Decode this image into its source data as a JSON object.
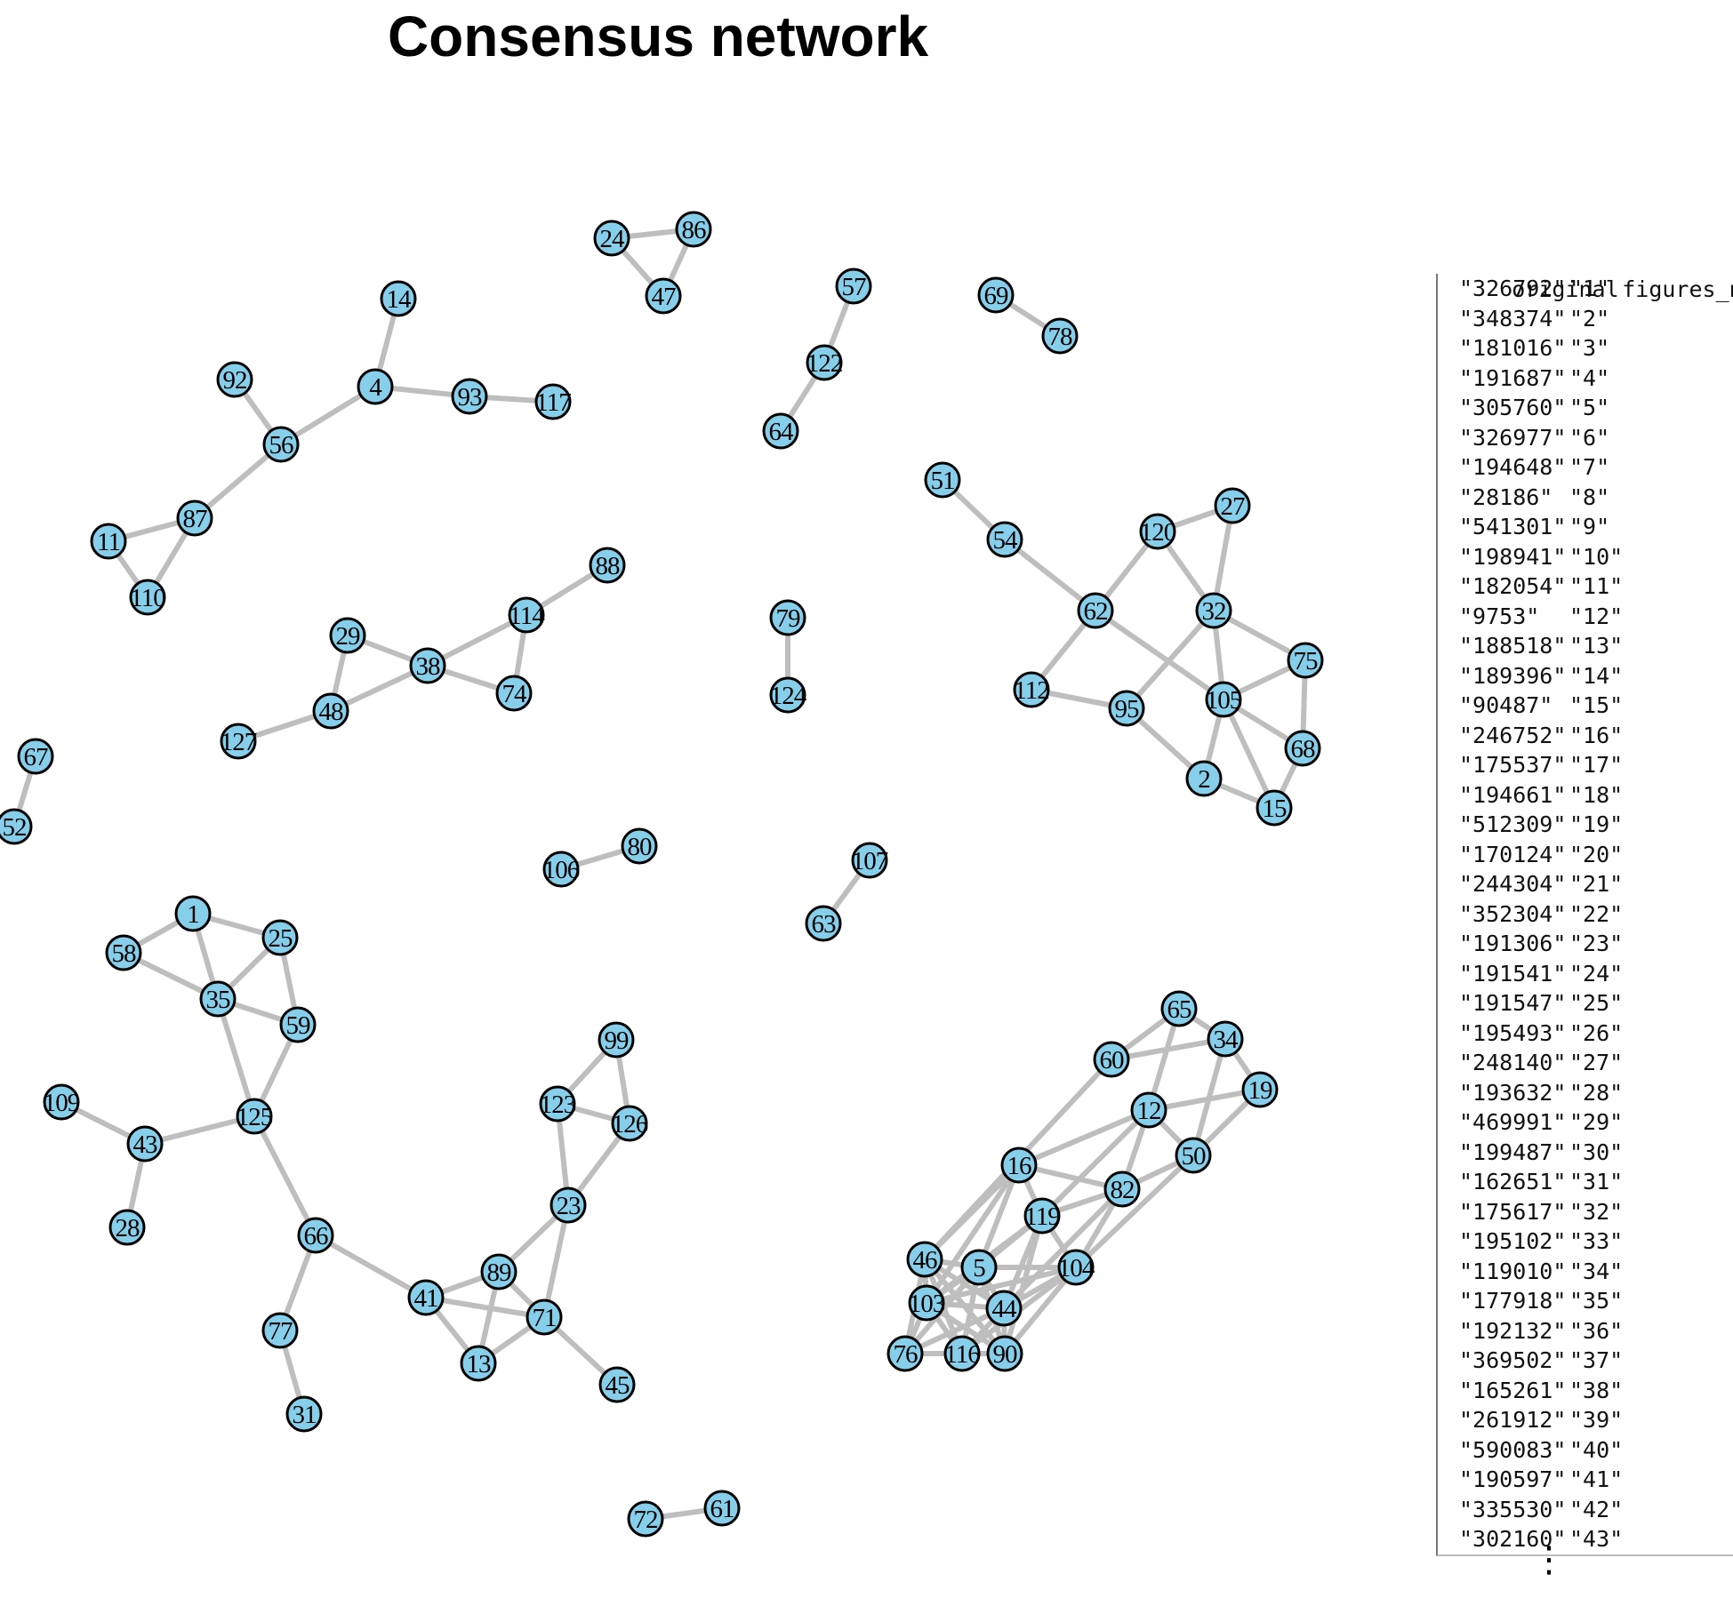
{
  "title": "Consensus network",
  "mapping_table": {
    "headers": [
      "original",
      "figures_name"
    ],
    "rows": [
      [
        "\"326792\"",
        "\"1\""
      ],
      [
        "\"348374\"",
        "\"2\""
      ],
      [
        "\"181016\"",
        "\"3\""
      ],
      [
        "\"191687\"",
        "\"4\""
      ],
      [
        "\"305760\"",
        "\"5\""
      ],
      [
        "\"326977\"",
        "\"6\""
      ],
      [
        "\"194648\"",
        "\"7\""
      ],
      [
        "\"28186\"",
        "\"8\""
      ],
      [
        "\"541301\"",
        "\"9\""
      ],
      [
        "\"198941\"",
        "\"10\""
      ],
      [
        "\"182054\"",
        "\"11\""
      ],
      [
        "\"9753\"",
        "\"12\""
      ],
      [
        "\"188518\"",
        "\"13\""
      ],
      [
        "\"189396\"",
        "\"14\""
      ],
      [
        "\"90487\"",
        "\"15\""
      ],
      [
        "\"246752\"",
        "\"16\""
      ],
      [
        "\"175537\"",
        "\"17\""
      ],
      [
        "\"194661\"",
        "\"18\""
      ],
      [
        "\"512309\"",
        "\"19\""
      ],
      [
        "\"170124\"",
        "\"20\""
      ],
      [
        "\"244304\"",
        "\"21\""
      ],
      [
        "\"352304\"",
        "\"22\""
      ],
      [
        "\"191306\"",
        "\"23\""
      ],
      [
        "\"191541\"",
        "\"24\""
      ],
      [
        "\"191547\"",
        "\"25\""
      ],
      [
        "\"195493\"",
        "\"26\""
      ],
      [
        "\"248140\"",
        "\"27\""
      ],
      [
        "\"193632\"",
        "\"28\""
      ],
      [
        "\"469991\"",
        "\"29\""
      ],
      [
        "\"199487\"",
        "\"30\""
      ],
      [
        "\"162651\"",
        "\"31\""
      ],
      [
        "\"175617\"",
        "\"32\""
      ],
      [
        "\"195102\"",
        "\"33\""
      ],
      [
        "\"119010\"",
        "\"34\""
      ],
      [
        "\"177918\"",
        "\"35\""
      ],
      [
        "\"192132\"",
        "\"36\""
      ],
      [
        "\"369502\"",
        "\"37\""
      ],
      [
        "\"165261\"",
        "\"38\""
      ],
      [
        "\"261912\"",
        "\"39\""
      ],
      [
        "\"590083\"",
        "\"40\""
      ],
      [
        "\"190597\"",
        "\"41\""
      ],
      [
        "\"335530\"",
        "\"42\""
      ],
      [
        "\"302160\"",
        "\"43\""
      ]
    ],
    "continuation": "⋮"
  },
  "network": {
    "node_fill": "#87ceeb",
    "node_stroke": "#000000",
    "edge_color": "#bebebe",
    "nodes": [
      "24",
      "86",
      "47",
      "57",
      "122",
      "64",
      "69",
      "78",
      "14",
      "92",
      "4",
      "93",
      "117",
      "56",
      "87",
      "11",
      "110",
      "88",
      "114",
      "29",
      "38",
      "74",
      "48",
      "127",
      "79",
      "124",
      "51",
      "54",
      "120",
      "27",
      "62",
      "32",
      "75",
      "112",
      "95",
      "105",
      "68",
      "2",
      "15",
      "67",
      "52",
      "106",
      "80",
      "107",
      "63",
      "1",
      "58",
      "25",
      "35",
      "59",
      "109",
      "43",
      "125",
      "28",
      "99",
      "123",
      "126",
      "23",
      "66",
      "89",
      "41",
      "71",
      "77",
      "13",
      "45",
      "31",
      "72",
      "61",
      "65",
      "60",
      "34",
      "19",
      "12",
      "50",
      "16",
      "82",
      "119",
      "46",
      "5",
      "104",
      "103",
      "44",
      "76",
      "116",
      "90"
    ],
    "edges": [
      [
        "24",
        "86"
      ],
      [
        "24",
        "47"
      ],
      [
        "86",
        "47"
      ],
      [
        "57",
        "122"
      ],
      [
        "122",
        "64"
      ],
      [
        "69",
        "78"
      ],
      [
        "14",
        "4"
      ],
      [
        "4",
        "93"
      ],
      [
        "93",
        "117"
      ],
      [
        "4",
        "56"
      ],
      [
        "92",
        "56"
      ],
      [
        "56",
        "87"
      ],
      [
        "87",
        "11"
      ],
      [
        "87",
        "110"
      ],
      [
        "11",
        "110"
      ],
      [
        "88",
        "114"
      ],
      [
        "114",
        "38"
      ],
      [
        "114",
        "74"
      ],
      [
        "38",
        "74"
      ],
      [
        "29",
        "38"
      ],
      [
        "29",
        "48"
      ],
      [
        "38",
        "48"
      ],
      [
        "48",
        "127"
      ],
      [
        "79",
        "124"
      ],
      [
        "51",
        "54"
      ],
      [
        "54",
        "62"
      ],
      [
        "62",
        "120"
      ],
      [
        "120",
        "27"
      ],
      [
        "120",
        "32"
      ],
      [
        "27",
        "32"
      ],
      [
        "62",
        "105"
      ],
      [
        "62",
        "112"
      ],
      [
        "112",
        "95"
      ],
      [
        "95",
        "32"
      ],
      [
        "95",
        "2"
      ],
      [
        "32",
        "75"
      ],
      [
        "32",
        "105"
      ],
      [
        "75",
        "105"
      ],
      [
        "75",
        "68"
      ],
      [
        "105",
        "68"
      ],
      [
        "105",
        "2"
      ],
      [
        "105",
        "15"
      ],
      [
        "2",
        "15"
      ],
      [
        "68",
        "15"
      ],
      [
        "67",
        "52"
      ],
      [
        "106",
        "80"
      ],
      [
        "107",
        "63"
      ],
      [
        "1",
        "58"
      ],
      [
        "1",
        "25"
      ],
      [
        "1",
        "35"
      ],
      [
        "58",
        "35"
      ],
      [
        "25",
        "35"
      ],
      [
        "25",
        "59"
      ],
      [
        "35",
        "59"
      ],
      [
        "35",
        "125"
      ],
      [
        "59",
        "125"
      ],
      [
        "125",
        "43"
      ],
      [
        "109",
        "43"
      ],
      [
        "43",
        "28"
      ],
      [
        "125",
        "66"
      ],
      [
        "99",
        "123"
      ],
      [
        "99",
        "126"
      ],
      [
        "123",
        "126"
      ],
      [
        "123",
        "23"
      ],
      [
        "126",
        "23"
      ],
      [
        "23",
        "89"
      ],
      [
        "23",
        "71"
      ],
      [
        "66",
        "41"
      ],
      [
        "66",
        "77"
      ],
      [
        "77",
        "31"
      ],
      [
        "41",
        "89"
      ],
      [
        "41",
        "71"
      ],
      [
        "41",
        "13"
      ],
      [
        "89",
        "13"
      ],
      [
        "89",
        "71"
      ],
      [
        "13",
        "71"
      ],
      [
        "71",
        "45"
      ],
      [
        "72",
        "61"
      ],
      [
        "65",
        "60"
      ],
      [
        "65",
        "34"
      ],
      [
        "65",
        "12"
      ],
      [
        "60",
        "34"
      ],
      [
        "34",
        "19"
      ],
      [
        "34",
        "50"
      ],
      [
        "12",
        "19"
      ],
      [
        "12",
        "50"
      ],
      [
        "19",
        "50"
      ],
      [
        "60",
        "46"
      ],
      [
        "12",
        "16"
      ],
      [
        "12",
        "82"
      ],
      [
        "12",
        "119"
      ],
      [
        "50",
        "82"
      ],
      [
        "50",
        "104"
      ],
      [
        "16",
        "82"
      ],
      [
        "16",
        "119"
      ],
      [
        "16",
        "46"
      ],
      [
        "16",
        "5"
      ],
      [
        "16",
        "103"
      ],
      [
        "82",
        "119"
      ],
      [
        "82",
        "104"
      ],
      [
        "82",
        "44"
      ],
      [
        "119",
        "104"
      ],
      [
        "119",
        "5"
      ],
      [
        "119",
        "103"
      ],
      [
        "119",
        "44"
      ],
      [
        "119",
        "90"
      ],
      [
        "5",
        "104"
      ],
      [
        "104",
        "44"
      ],
      [
        "104",
        "103"
      ],
      [
        "104",
        "90"
      ],
      [
        "104",
        "116"
      ],
      [
        "46",
        "5"
      ],
      [
        "46",
        "103"
      ],
      [
        "46",
        "44"
      ],
      [
        "46",
        "76"
      ],
      [
        "46",
        "116"
      ],
      [
        "46",
        "90"
      ],
      [
        "5",
        "103"
      ],
      [
        "5",
        "44"
      ],
      [
        "5",
        "76"
      ],
      [
        "5",
        "116"
      ],
      [
        "5",
        "90"
      ],
      [
        "103",
        "44"
      ],
      [
        "103",
        "76"
      ],
      [
        "103",
        "116"
      ],
      [
        "103",
        "90"
      ],
      [
        "44",
        "76"
      ],
      [
        "44",
        "116"
      ],
      [
        "44",
        "90"
      ],
      [
        "76",
        "116"
      ],
      [
        "116",
        "90"
      ]
    ]
  }
}
